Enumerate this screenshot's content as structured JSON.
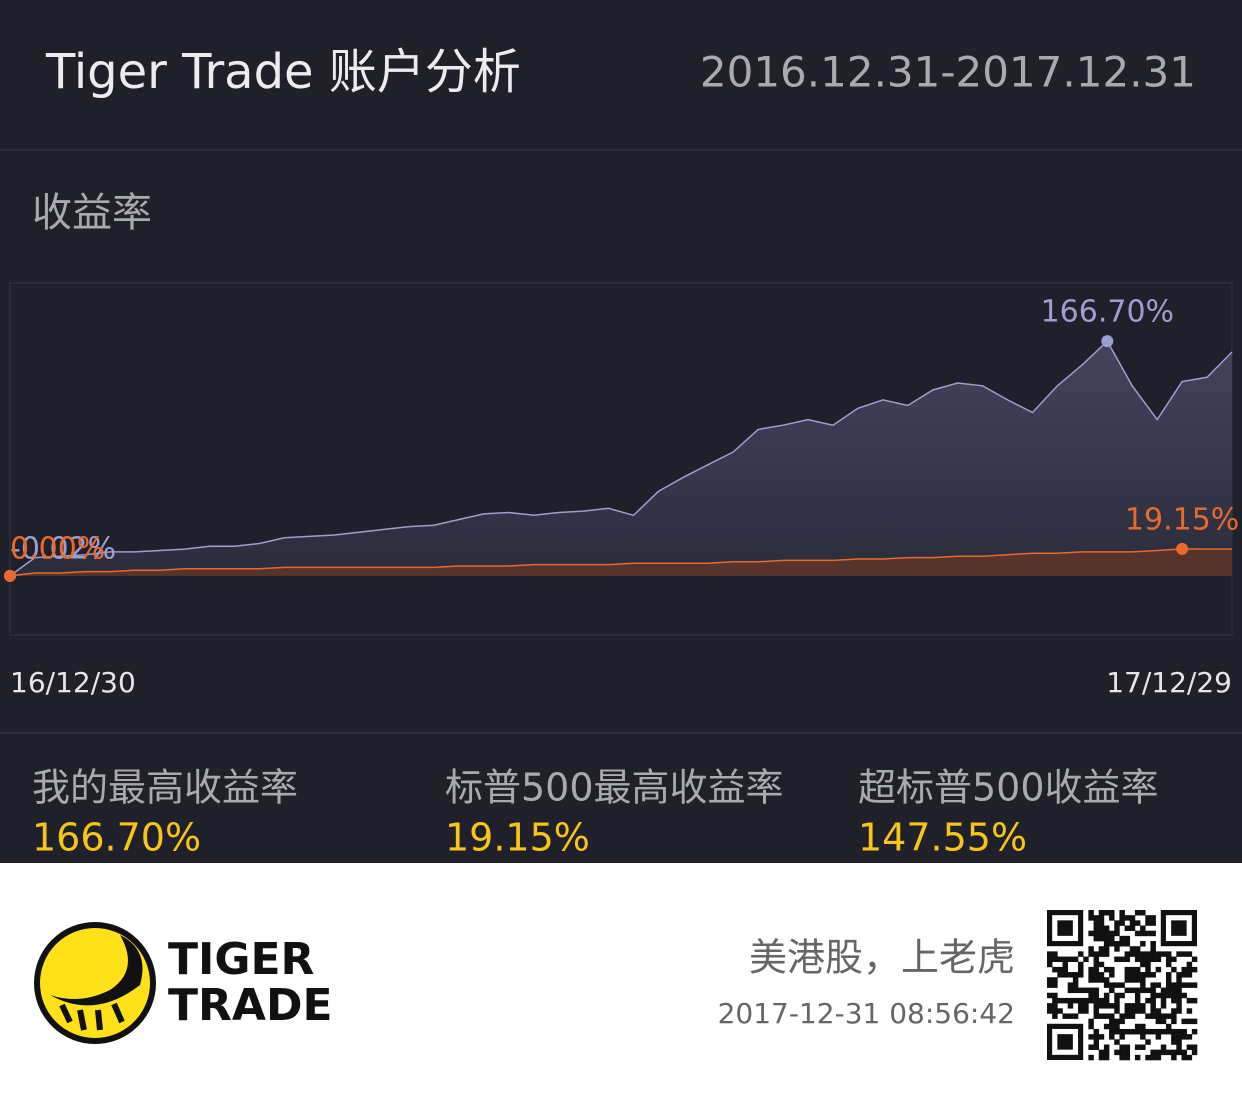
{
  "header": {
    "title": "Tiger Trade 账户分析",
    "date_range": "2016.12.31-2017.12.31"
  },
  "section_title": "收益率",
  "chart_data": {
    "type": "area",
    "categories": [
      "16/12/30",
      null,
      null,
      null,
      null,
      null,
      null,
      null,
      null,
      null,
      null,
      null,
      null,
      null,
      null,
      null,
      null,
      null,
      null,
      null,
      null,
      null,
      null,
      null,
      null,
      null,
      null,
      null,
      null,
      null,
      null,
      null,
      null,
      null,
      null,
      null,
      null,
      null,
      null,
      null,
      null,
      null,
      null,
      null,
      null,
      null,
      null,
      null,
      null,
      "17/12/29"
    ],
    "ylim": [
      -42,
      208
    ],
    "series": [
      {
        "color": "#9c9fd0",
        "values": [
          -0.02,
          13,
          14,
          15,
          17,
          17,
          18,
          19,
          21,
          21,
          23,
          27,
          28,
          29,
          31,
          33,
          35,
          36,
          40,
          44,
          45,
          43,
          45,
          46,
          48,
          43,
          60,
          70,
          79,
          88,
          104,
          107,
          111,
          107,
          119,
          125,
          121,
          132,
          137,
          135,
          125,
          116,
          135,
          150,
          166.7,
          135,
          111,
          138,
          141,
          159
        ],
        "value_labels": [
          "-0.02%",
          null,
          null,
          null,
          null,
          null,
          null,
          null,
          null,
          null,
          null,
          null,
          null,
          null,
          null,
          null,
          null,
          null,
          null,
          null,
          null,
          null,
          null,
          null,
          null,
          null,
          null,
          null,
          null,
          null,
          null,
          null,
          null,
          null,
          null,
          null,
          null,
          null,
          null,
          null,
          null,
          null,
          null,
          null,
          "166.70%",
          null,
          null,
          null,
          null,
          null
        ]
      },
      {
        "color": "#e8692e",
        "values": [
          0,
          2,
          2,
          3,
          3,
          4,
          4,
          5,
          5,
          5,
          5,
          6,
          6,
          6,
          6,
          6,
          6,
          6,
          7,
          7,
          7,
          8,
          8,
          8,
          8,
          9,
          9,
          9,
          9,
          10,
          10,
          11,
          11,
          11,
          12,
          12,
          13,
          13,
          14,
          14,
          15,
          16,
          16,
          17,
          17,
          17,
          18,
          19.15,
          19,
          19
        ],
        "value_labels": [
          "0.00%",
          null,
          null,
          null,
          null,
          null,
          null,
          null,
          null,
          null,
          null,
          null,
          null,
          null,
          null,
          null,
          null,
          null,
          null,
          null,
          null,
          null,
          null,
          null,
          null,
          null,
          null,
          null,
          null,
          null,
          null,
          null,
          null,
          null,
          null,
          null,
          null,
          null,
          null,
          null,
          null,
          null,
          null,
          null,
          null,
          null,
          null,
          "19.15%",
          null,
          null
        ]
      }
    ]
  },
  "stats": [
    {
      "label": "我的最高收益率",
      "value": "166.70%"
    },
    {
      "label": "标普500最高收益率",
      "value": "19.15%"
    },
    {
      "label": "超标普500收益率",
      "value": "147.55%"
    }
  ],
  "footer": {
    "logo_lines": [
      "TIGER",
      "TRADE"
    ],
    "slogan": "美港股，上老虎",
    "timestamp": "2017-12-31 08:56:42"
  }
}
